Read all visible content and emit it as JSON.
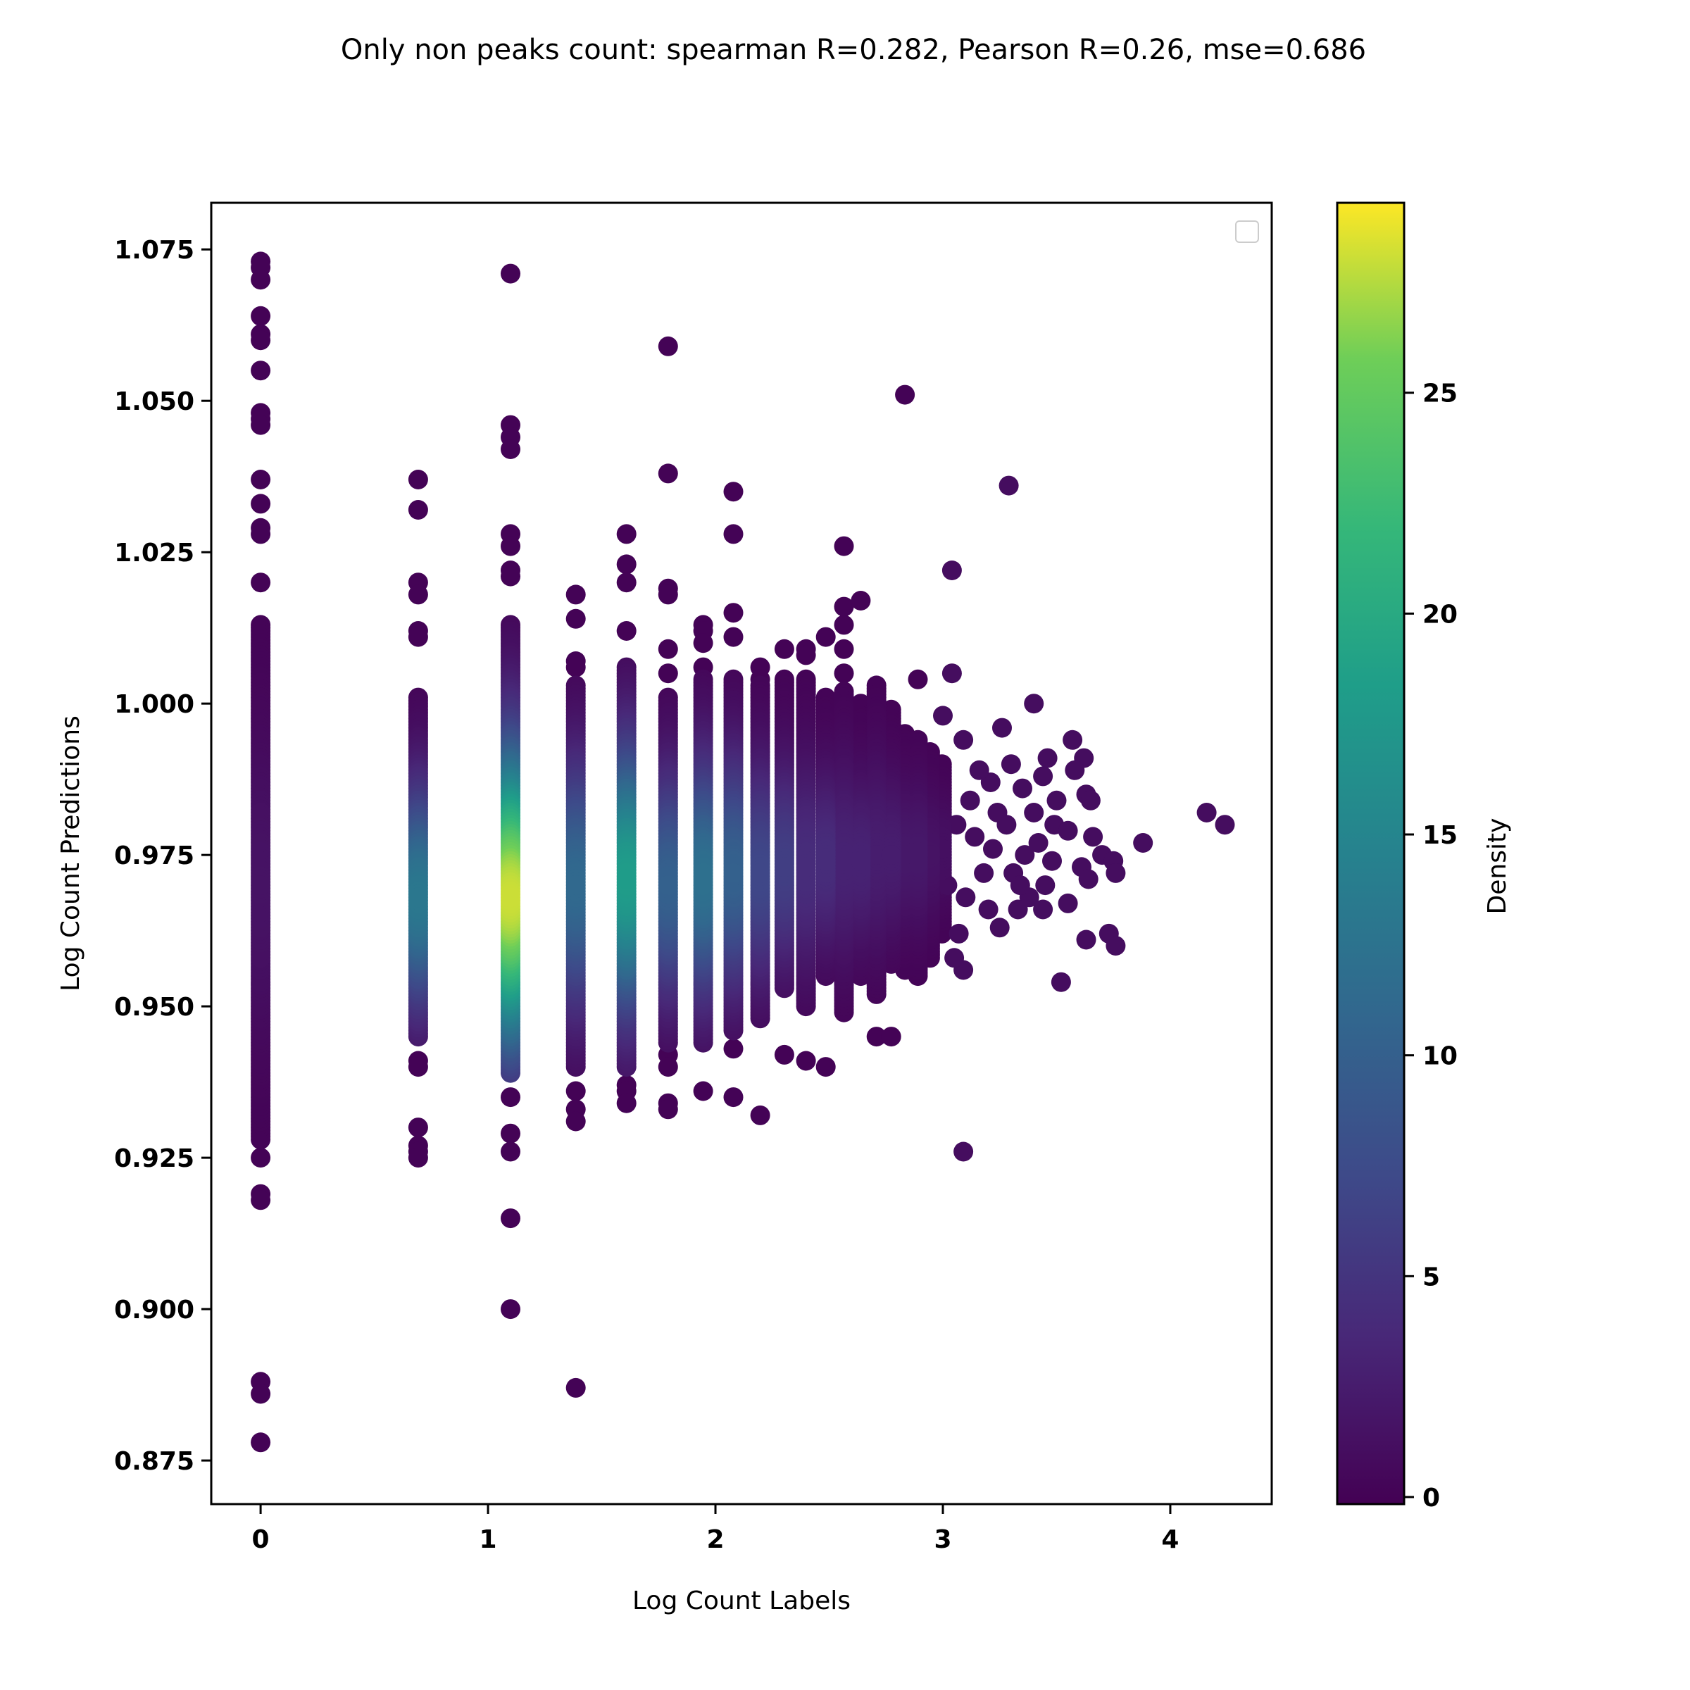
{
  "chart_data": {
    "type": "scatter",
    "title": "Only non peaks count: spearman R=0.282, Pearson R=0.26, mse=0.686",
    "xlabel": "Log Count Labels",
    "ylabel": "Log Count Predictions",
    "xlim": [
      -0.217,
      4.446
    ],
    "ylim": [
      0.8678,
      1.0827
    ],
    "xticks": [
      0,
      1,
      2,
      3,
      4
    ],
    "xtick_labels": [
      "0",
      "1",
      "2",
      "3",
      "4"
    ],
    "yticks": [
      0.875,
      0.9,
      0.925,
      0.95,
      0.975,
      1.0,
      1.025,
      1.05,
      1.075
    ],
    "ytick_labels": [
      "0.875",
      "0.900",
      "0.925",
      "0.950",
      "0.975",
      "1.000",
      "1.025",
      "1.050",
      "1.075"
    ],
    "grid": false,
    "legend": {
      "placement": "top-right",
      "entries": []
    },
    "colorbar": {
      "label": "Density",
      "colormap": "viridis",
      "range": [
        -0.16,
        29.3
      ],
      "ticks": [
        0,
        5,
        10,
        15,
        20,
        25
      ],
      "tick_labels": [
        "0",
        "5",
        "10",
        "15",
        "20",
        "25"
      ]
    },
    "columns": [
      {
        "x": 0.0,
        "band": [
          0.928,
          1.013
        ],
        "center": 0.97,
        "peak_density": 1.5,
        "outliers": [
          1.073,
          1.072,
          1.07,
          1.064,
          1.061,
          1.06,
          1.055,
          1.048,
          1.047,
          1.046,
          1.037,
          1.033,
          1.029,
          1.028,
          1.02,
          0.925,
          0.919,
          0.918,
          0.888,
          0.886,
          0.878
        ]
      },
      {
        "x": 0.693,
        "band": [
          0.945,
          1.001
        ],
        "center": 0.968,
        "peak_density": 13,
        "outliers": [
          1.037,
          1.032,
          1.02,
          1.018,
          1.012,
          1.011,
          0.941,
          0.94,
          0.93,
          0.927,
          0.926,
          0.925
        ]
      },
      {
        "x": 1.099,
        "band": [
          0.939,
          1.013
        ],
        "center": 0.968,
        "peak_density": 28,
        "outliers": [
          1.071,
          1.046,
          1.044,
          1.042,
          1.028,
          1.026,
          1.022,
          1.021,
          0.935,
          0.929,
          0.926,
          0.915,
          0.9
        ]
      },
      {
        "x": 1.386,
        "band": [
          0.94,
          1.003
        ],
        "center": 0.97,
        "peak_density": 11,
        "outliers": [
          1.018,
          1.014,
          1.007,
          1.006,
          0.936,
          0.933,
          0.931,
          0.887
        ]
      },
      {
        "x": 1.609,
        "band": [
          0.94,
          1.006
        ],
        "center": 0.971,
        "peak_density": 18,
        "outliers": [
          1.028,
          1.023,
          1.02,
          1.012,
          0.937,
          0.936,
          0.934
        ]
      },
      {
        "x": 1.792,
        "band": [
          0.944,
          1.001
        ],
        "center": 0.97,
        "peak_density": 10,
        "outliers": [
          1.059,
          1.038,
          1.019,
          1.018,
          1.009,
          1.005,
          0.942,
          0.94,
          0.934,
          0.933
        ]
      },
      {
        "x": 1.946,
        "band": [
          0.944,
          1.004
        ],
        "center": 0.971,
        "peak_density": 12,
        "outliers": [
          1.013,
          1.012,
          1.01,
          1.006,
          0.936
        ]
      },
      {
        "x": 2.079,
        "band": [
          0.946,
          1.004
        ],
        "center": 0.972,
        "peak_density": 10,
        "outliers": [
          1.035,
          1.028,
          1.015,
          1.011,
          0.943,
          0.935
        ]
      },
      {
        "x": 2.197,
        "band": [
          0.948,
          1.003
        ],
        "center": 0.972,
        "peak_density": 7,
        "outliers": [
          1.006,
          1.004,
          0.932
        ]
      },
      {
        "x": 2.303,
        "band": [
          0.953,
          1.004
        ],
        "center": 0.973,
        "peak_density": 6,
        "outliers": [
          1.009,
          0.942
        ]
      },
      {
        "x": 2.398,
        "band": [
          0.95,
          1.004
        ],
        "center": 0.973,
        "peak_density": 4,
        "outliers": [
          1.009,
          1.008,
          0.941
        ]
      },
      {
        "x": 2.485,
        "band": [
          0.955,
          1.001
        ],
        "center": 0.974,
        "peak_density": 4,
        "outliers": [
          1.011,
          0.94
        ]
      },
      {
        "x": 2.565,
        "band": [
          0.949,
          1.002
        ],
        "center": 0.974,
        "peak_density": 3,
        "outliers": [
          1.026,
          1.016,
          1.013,
          1.009,
          1.005
        ]
      },
      {
        "x": 2.639,
        "band": [
          0.955,
          1.0
        ],
        "center": 0.974,
        "peak_density": 3,
        "outliers": [
          1.017
        ]
      },
      {
        "x": 2.708,
        "band": [
          0.952,
          1.003
        ],
        "center": 0.975,
        "peak_density": 2.5,
        "outliers": [
          0.945
        ]
      },
      {
        "x": 2.773,
        "band": [
          0.957,
          0.999
        ],
        "center": 0.975,
        "peak_density": 2.5,
        "outliers": [
          0.945
        ]
      },
      {
        "x": 2.833,
        "band": [
          0.956,
          0.995
        ],
        "center": 0.975,
        "peak_density": 2,
        "outliers": [
          1.051
        ]
      },
      {
        "x": 2.89,
        "band": [
          0.955,
          0.994
        ],
        "center": 0.975,
        "peak_density": 2,
        "outliers": [
          1.004
        ]
      },
      {
        "x": 2.944,
        "band": [
          0.958,
          0.992
        ],
        "center": 0.975,
        "peak_density": 1.5,
        "outliers": []
      },
      {
        "x": 2.996,
        "band": [
          0.962,
          0.99
        ],
        "center": 0.976,
        "peak_density": 1.2,
        "outliers": []
      }
    ],
    "tail_points": [
      [
        3.04,
        1.005
      ],
      [
        3.04,
        1.022
      ],
      [
        3.29,
        1.036
      ],
      [
        3.09,
        0.926
      ],
      [
        3.52,
        0.954
      ],
      [
        3.63,
        0.961
      ],
      [
        3.73,
        0.962
      ],
      [
        3.76,
        0.96
      ],
      [
        3.88,
        0.977
      ],
      [
        4.16,
        0.982
      ],
      [
        4.24,
        0.98
      ],
      [
        3.4,
        1.0
      ],
      [
        3.26,
        0.996
      ],
      [
        3.57,
        0.994
      ],
      [
        3.62,
        0.991
      ],
      [
        3.46,
        0.991
      ],
      [
        3.5,
        0.984
      ],
      [
        3.66,
        0.978
      ],
      [
        3.7,
        0.975
      ],
      [
        3.75,
        0.974
      ],
      [
        3.76,
        0.972
      ],
      [
        3.55,
        0.967
      ],
      [
        3.63,
        0.985
      ],
      [
        3.65,
        0.984
      ],
      [
        3.58,
        0.989
      ],
      [
        3.44,
        0.988
      ],
      [
        3.4,
        0.982
      ],
      [
        3.49,
        0.98
      ],
      [
        3.55,
        0.979
      ],
      [
        3.61,
        0.973
      ],
      [
        3.64,
        0.971
      ],
      [
        3.48,
        0.974
      ],
      [
        3.45,
        0.97
      ],
      [
        3.38,
        0.968
      ],
      [
        3.33,
        0.966
      ],
      [
        3.25,
        0.963
      ],
      [
        3.09,
        0.956
      ],
      [
        3.05,
        0.958
      ],
      [
        3.09,
        0.994
      ],
      [
        3.0,
        0.998
      ],
      [
        3.21,
        0.987
      ],
      [
        3.3,
        0.99
      ],
      [
        3.35,
        0.986
      ],
      [
        3.14,
        0.978
      ],
      [
        3.18,
        0.972
      ],
      [
        3.1,
        0.968
      ],
      [
        3.22,
        0.976
      ],
      [
        3.28,
        0.98
      ],
      [
        3.36,
        0.975
      ],
      [
        3.42,
        0.977
      ],
      [
        3.12,
        0.984
      ],
      [
        3.16,
        0.989
      ],
      [
        3.06,
        0.98
      ],
      [
        3.02,
        0.97
      ],
      [
        3.07,
        0.962
      ],
      [
        3.2,
        0.966
      ],
      [
        3.31,
        0.972
      ],
      [
        3.24,
        0.982
      ],
      [
        3.34,
        0.97
      ],
      [
        3.44,
        0.966
      ]
    ],
    "tail_density": 1
  }
}
